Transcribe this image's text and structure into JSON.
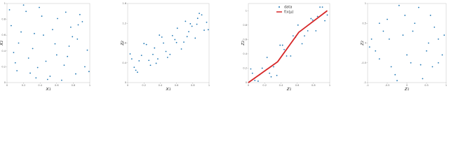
{
  "chart_data": [
    {
      "type": "scatter",
      "xlabel": "x₁",
      "ylabel": "x₂",
      "xlim": [
        0,
        1
      ],
      "ylim": [
        0,
        1
      ],
      "xticks": [
        0,
        0.2,
        0.4,
        0.6,
        0.8,
        1
      ],
      "yticks": [
        0,
        0.2,
        0.4,
        0.6,
        0.8,
        1
      ],
      "series": [
        {
          "color": "#1f77b4",
          "mode": "points",
          "x": [
            0.05,
            0.12,
            0.23,
            0.31,
            0.44,
            0.52,
            0.61,
            0.73,
            0.85,
            0.94,
            0.08,
            0.17,
            0.28,
            0.39,
            0.47,
            0.58,
            0.66,
            0.77,
            0.88,
            0.97,
            0.03,
            0.14,
            0.26,
            0.35,
            0.42,
            0.55,
            0.69,
            0.79,
            0.83,
            0.91,
            0.1,
            0.2,
            0.33,
            0.37,
            0.49,
            0.6,
            0.71,
            0.75,
            0.86,
            0.99
          ],
          "values": [
            0.72,
            0.15,
            0.9,
            0.43,
            0.6,
            0.08,
            0.81,
            0.33,
            0.55,
            0.2,
            0.38,
            0.64,
            0.12,
            0.95,
            0.27,
            0.49,
            0.03,
            0.7,
            0.86,
            0.41,
            0.92,
            0.5,
            0.31,
            0.06,
            0.84,
            0.67,
            0.22,
            0.58,
            0.11,
            0.77,
            0.25,
            0.98,
            0.62,
            0.19,
            0.04,
            0.35,
            0.89,
            0.46,
            0.73,
            0.14
          ]
        }
      ]
    },
    {
      "type": "scatter",
      "xlabel": "x₁",
      "ylabel": "z₂",
      "xlim": [
        0,
        1
      ],
      "ylim": [
        0,
        1.6
      ],
      "xticks": [
        0,
        0.2,
        0.4,
        0.6,
        0.8,
        1
      ],
      "yticks": [
        0,
        0.4,
        0.8,
        1.2,
        1.6
      ],
      "series": [
        {
          "color": "#1f77b4",
          "mode": "points",
          "x": [
            0.05,
            0.12,
            0.23,
            0.31,
            0.44,
            0.52,
            0.61,
            0.73,
            0.85,
            0.94,
            0.08,
            0.17,
            0.28,
            0.39,
            0.47,
            0.58,
            0.66,
            0.77,
            0.88,
            0.97,
            0.03,
            0.14,
            0.26,
            0.35,
            0.42,
            0.55,
            0.69,
            0.79,
            0.83,
            0.91,
            0.1,
            0.2,
            0.33,
            0.37,
            0.49,
            0.6,
            0.71,
            0.75,
            0.86,
            0.99
          ],
          "values": [
            0.48,
            0.21,
            0.77,
            0.57,
            0.8,
            0.57,
            1.1,
            0.93,
            1.18,
            1.06,
            0.31,
            0.55,
            0.35,
            0.96,
            0.63,
            0.87,
            0.68,
            1.19,
            1.4,
            1.22,
            0.58,
            0.44,
            0.45,
            0.39,
            0.92,
            0.95,
            0.82,
            1.14,
            0.9,
            1.37,
            0.25,
            0.79,
            0.7,
            0.48,
            0.51,
            0.81,
            1.24,
            1.03,
            1.3,
            1.07
          ]
        }
      ]
    },
    {
      "type": "scatter",
      "xlabel": "z₁",
      "ylabel": "z₂",
      "xlim": [
        0,
        1
      ],
      "ylim": [
        0,
        1.1
      ],
      "xticks": [
        0,
        0.2,
        0.4,
        0.6,
        0.8,
        1
      ],
      "yticks": [
        0,
        0.2,
        0.4,
        0.6,
        0.8,
        1
      ],
      "series": [
        {
          "name": "data",
          "color": "#1f77b4",
          "mode": "points",
          "x": [
            0.05,
            0.12,
            0.23,
            0.31,
            0.44,
            0.52,
            0.61,
            0.73,
            0.85,
            0.94,
            0.08,
            0.17,
            0.28,
            0.39,
            0.47,
            0.58,
            0.66,
            0.77,
            0.88,
            0.97,
            0.03,
            0.14,
            0.26,
            0.35,
            0.42,
            0.55,
            0.69,
            0.79,
            0.83,
            0.91
          ],
          "values": [
            0.13,
            0.02,
            0.35,
            0.22,
            0.46,
            0.37,
            0.8,
            0.72,
            0.92,
            0.86,
            0.03,
            0.2,
            0.08,
            0.52,
            0.37,
            0.63,
            0.54,
            0.89,
            1.05,
            0.94,
            0.19,
            0.11,
            0.13,
            0.1,
            0.52,
            0.65,
            0.65,
            0.87,
            0.72,
            1.05
          ]
        },
        {
          "name": "f(x|μ)",
          "color": "#d62728",
          "mode": "line",
          "x": [
            0,
            0.36,
            0.62,
            0.97
          ],
          "values": [
            0,
            0.29,
            0.7,
            1.0
          ]
        }
      ]
    },
    {
      "type": "scatter",
      "xlabel": "z₁",
      "ylabel": "z₂",
      "xlim": [
        -1,
        1
      ],
      "ylim": [
        -1,
        1
      ],
      "xticks": [
        -1,
        -0.5,
        0,
        0.5,
        1
      ],
      "yticks": [
        -1,
        -0.5,
        0,
        0.5,
        1
      ],
      "series": [
        {
          "color": "#1f77b4",
          "mode": "points",
          "x": [
            -0.9,
            -0.7,
            -0.5,
            -0.3,
            -0.1,
            0.1,
            0.3,
            0.5,
            0.7,
            0.9,
            -0.8,
            -0.6,
            -0.4,
            -0.2,
            0,
            0.2,
            0.4,
            0.6,
            0.8,
            0.95,
            -0.95,
            -0.7,
            -0.45,
            -0.25,
            -0.05,
            0.15,
            0.35,
            0.55,
            0.65,
            0.8
          ],
          "values": [
            0.1,
            -0.4,
            0.6,
            -0.8,
            0.2,
            -0.5,
            0.9,
            -0.2,
            0.4,
            -0.3,
            -0.2,
            0.3,
            -0.6,
            0.95,
            -0.3,
            0.5,
            -0.9,
            0.7,
            0.1,
            0.2,
            -0.1,
            0.5,
            0.1,
            -0.95,
            0.7,
            0.3,
            -0.55,
            0,
            -0.6,
            -0.5
          ]
        }
      ]
    }
  ]
}
